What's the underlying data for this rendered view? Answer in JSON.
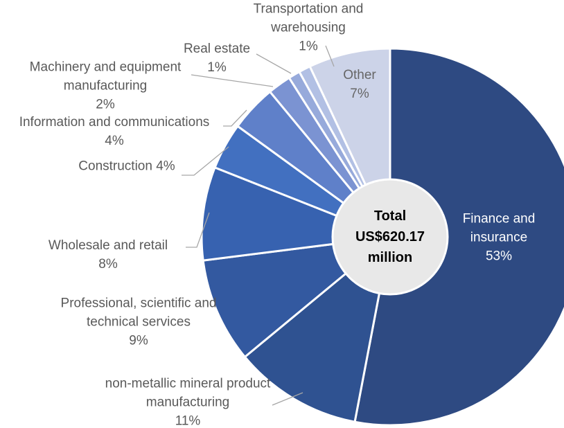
{
  "chart_data": {
    "type": "pie",
    "categories": [
      "Finance and insurance",
      "non-metallic mineral product manufacturing",
      "Professional, scientific and technical services",
      "Wholesale and retail",
      "Construction",
      "Information and communications",
      "Machinery and equipment manufacturing",
      "Real estate",
      "Transportation and warehousing",
      "Other"
    ],
    "values": [
      53,
      11,
      9,
      8,
      4,
      4,
      2,
      1,
      1,
      7
    ],
    "value_labels": [
      "53%",
      "11%",
      "9%",
      "8%",
      "4%",
      "4%",
      "2%",
      "1%",
      "1%",
      "7%"
    ],
    "colors": [
      "#2e4a82",
      "#2f5291",
      "#3359a0",
      "#3762b0",
      "#4270c0",
      "#5f80c9",
      "#7b93d2",
      "#97aadb",
      "#b2c0e4",
      "#ccd3e8"
    ],
    "center_label": "Total US$620.17 million"
  }
}
